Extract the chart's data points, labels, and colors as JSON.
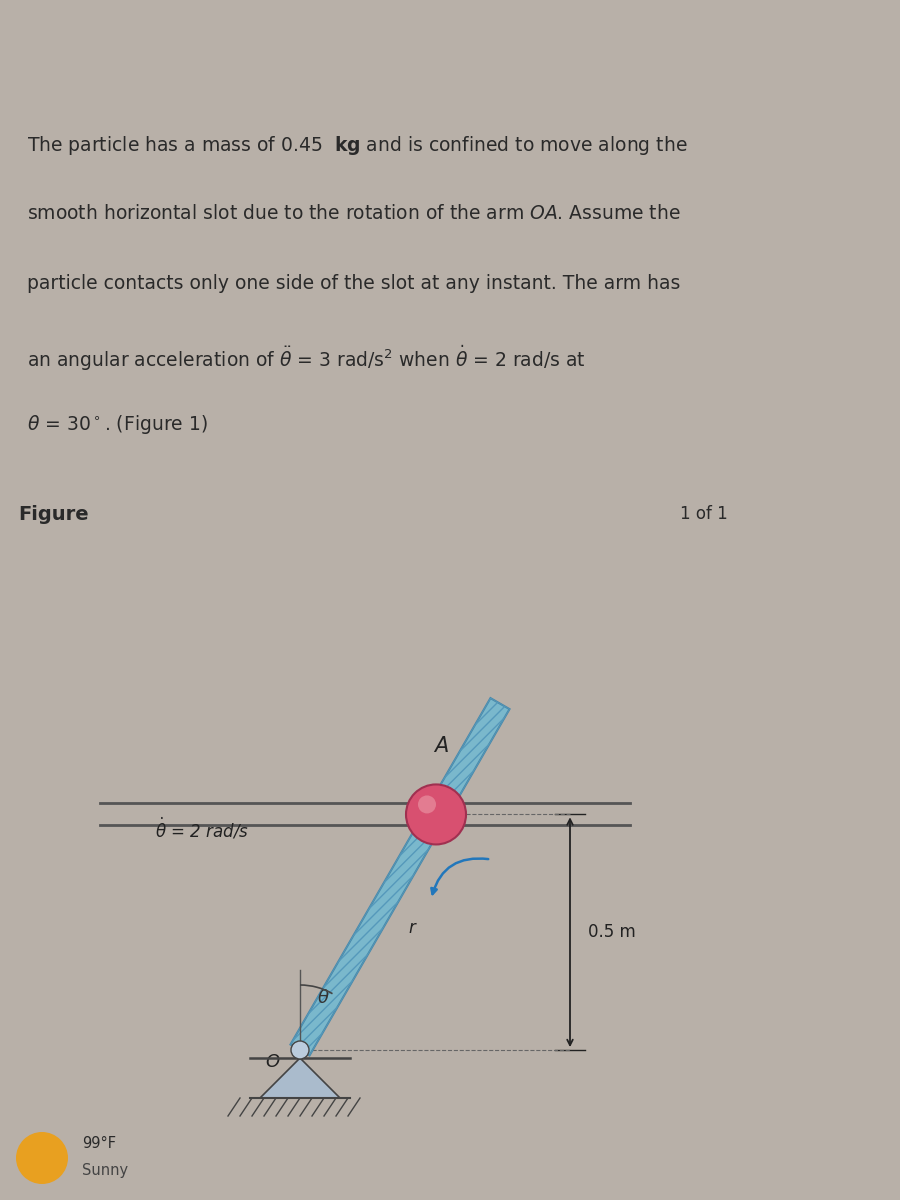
{
  "bg_color": "#ccc5bc",
  "text_color": "#2a2a2a",
  "page_bg": "#b8b0a8",
  "figure_label": "Figure",
  "figure_nav": "1 of 1",
  "theta_deg": 60,
  "particle_label": "A",
  "pivot_label": "O",
  "theta_label": "θ",
  "r_label": "r",
  "dim_label": "0.5 m",
  "arm_color": "#7ab8cc",
  "arm_edge_color": "#4a88a8",
  "arm_hatch_color": "#5599bb",
  "particle_color": "#d85070",
  "particle_edge_color": "#a03050",
  "particle_highlight": "#e890a0",
  "slot_color": "#555555",
  "dim_line_color": "#222222",
  "ground_color": "#8899aa",
  "arrow_color": "#2277bb",
  "weather_dot_color": "#e8a020",
  "font_size_desc": 13.5,
  "font_size_labels": 12,
  "font_size_figure": 14,
  "text_line1": "The particle has a mass of 0.45  kg and is confined to move along the",
  "text_line2": "smooth horizontal slot due to the rotation of the arm OA. Assume the",
  "text_line3": "particle contacts only one side of the slot at any instant. The arm has",
  "text_line4": "an angular acceleration of θ̈ = 3 rad/s² when θ̇ = 2 rad/s at",
  "text_line5": "θ = 30°. (Figure 1)"
}
